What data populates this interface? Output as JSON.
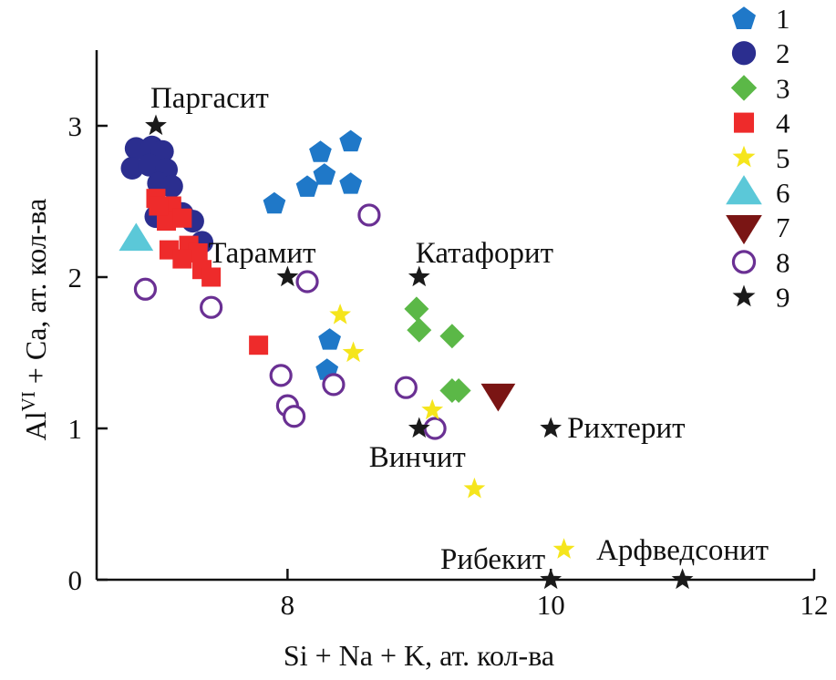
{
  "chart_data": {
    "type": "scatter",
    "xlabel": "Si + Na + K, ат. кол-ва",
    "ylabel_main": "Al",
    "ylabel_sup": "VI",
    "ylabel_rest": " + Ca, ат. кол-ва",
    "xlim": [
      6.55,
      12
    ],
    "ylim": [
      0,
      3.5
    ],
    "x_ticks": [
      {
        "value": 8,
        "label": "8"
      },
      {
        "value": 10,
        "label": "10"
      },
      {
        "value": 12,
        "label": "12"
      }
    ],
    "y_ticks": [
      {
        "value": 0,
        "label": "0"
      },
      {
        "value": 1,
        "label": "1"
      },
      {
        "value": 2,
        "label": "2"
      },
      {
        "value": 3,
        "label": "3"
      }
    ],
    "grid": false,
    "legend_position": "top-right",
    "series": [
      {
        "name": "1",
        "marker": "pentagon",
        "color": "#1f78c8",
        "filled": true,
        "points": [
          [
            8.25,
            2.83
          ],
          [
            8.48,
            2.9
          ],
          [
            8.28,
            2.68
          ],
          [
            8.15,
            2.6
          ],
          [
            8.48,
            2.62
          ],
          [
            7.9,
            2.49
          ],
          [
            8.32,
            1.59
          ],
          [
            8.3,
            1.39
          ]
        ]
      },
      {
        "name": "2",
        "marker": "circle",
        "color": "#2b2e8f",
        "filled": true,
        "points": [
          [
            6.85,
            2.85
          ],
          [
            6.97,
            2.86
          ],
          [
            7.05,
            2.83
          ],
          [
            6.82,
            2.72
          ],
          [
            6.95,
            2.74
          ],
          [
            7.08,
            2.71
          ],
          [
            7.02,
            2.62
          ],
          [
            7.12,
            2.6
          ],
          [
            7.0,
            2.4
          ],
          [
            7.2,
            2.42
          ],
          [
            7.28,
            2.37
          ],
          [
            7.35,
            2.23
          ]
        ]
      },
      {
        "name": "3",
        "marker": "diamond",
        "color": "#5bb847",
        "filled": true,
        "points": [
          [
            8.98,
            1.79
          ],
          [
            9.0,
            1.65
          ],
          [
            9.25,
            1.61
          ],
          [
            9.25,
            1.25
          ],
          [
            9.3,
            1.25
          ]
        ]
      },
      {
        "name": "4",
        "marker": "square",
        "color": "#ee2b2b",
        "filled": true,
        "points": [
          [
            7.0,
            2.52
          ],
          [
            7.12,
            2.47
          ],
          [
            7.08,
            2.37
          ],
          [
            7.2,
            2.39
          ],
          [
            7.02,
            2.47
          ],
          [
            7.25,
            2.21
          ],
          [
            7.1,
            2.18
          ],
          [
            7.32,
            2.16
          ],
          [
            7.2,
            2.12
          ],
          [
            7.35,
            2.05
          ],
          [
            7.42,
            2.0
          ],
          [
            7.78,
            1.55
          ]
        ]
      },
      {
        "name": "5",
        "marker": "star",
        "color": "#f5e51c",
        "filled": true,
        "points": [
          [
            8.4,
            1.75
          ],
          [
            8.5,
            1.5
          ],
          [
            9.1,
            1.12
          ],
          [
            9.42,
            0.6
          ],
          [
            10.1,
            0.2
          ]
        ]
      },
      {
        "name": "6",
        "marker": "triangle-up",
        "color": "#5bc8d8",
        "filled": true,
        "points": [
          [
            6.85,
            2.25
          ]
        ]
      },
      {
        "name": "7",
        "marker": "triangle-down",
        "color": "#7a1514",
        "filled": true,
        "points": [
          [
            9.6,
            1.22
          ]
        ]
      },
      {
        "name": "8",
        "marker": "circle",
        "color": "#6a3093",
        "filled": false,
        "points": [
          [
            8.62,
            2.41
          ],
          [
            8.15,
            1.97
          ],
          [
            6.92,
            1.92
          ],
          [
            7.42,
            1.8
          ],
          [
            7.95,
            1.35
          ],
          [
            8.0,
            1.15
          ],
          [
            8.05,
            1.08
          ],
          [
            8.35,
            1.29
          ],
          [
            8.9,
            1.27
          ],
          [
            9.12,
            1.0
          ]
        ]
      },
      {
        "name": "9",
        "marker": "star",
        "color": "#1a1a1a",
        "filled": true,
        "points": [
          [
            7.0,
            3.0
          ],
          [
            8.0,
            2.0
          ],
          [
            9.0,
            2.0
          ],
          [
            9.0,
            1.0
          ],
          [
            10.0,
            1.0
          ],
          [
            10.0,
            0.0
          ],
          [
            11.0,
            0.0
          ]
        ]
      }
    ],
    "annotations": [
      {
        "text": "Паргасит",
        "x": 7.0,
        "y": 3.0,
        "anchor": "start",
        "dx": -6,
        "dy": -20
      },
      {
        "text": "Тарамит",
        "x": 8.0,
        "y": 2.0,
        "anchor": "middle",
        "dx": -28,
        "dy": -16
      },
      {
        "text": "Катафорит",
        "x": 9.0,
        "y": 2.0,
        "anchor": "start",
        "dx": -4,
        "dy": -16
      },
      {
        "text": "Винчит",
        "x": 9.0,
        "y": 1.0,
        "anchor": "middle",
        "dx": -2,
        "dy": 42
      },
      {
        "text": "Рихтерит",
        "x": 10.0,
        "y": 1.0,
        "anchor": "start",
        "dx": 18,
        "dy": 10
      },
      {
        "text": "Рибекит",
        "x": 10.0,
        "y": 0.0,
        "anchor": "end",
        "dx": -6,
        "dy": -12
      },
      {
        "text": "Арфведсонит",
        "x": 11.0,
        "y": 0.0,
        "anchor": "middle",
        "dx": 0,
        "dy": -22
      }
    ]
  }
}
